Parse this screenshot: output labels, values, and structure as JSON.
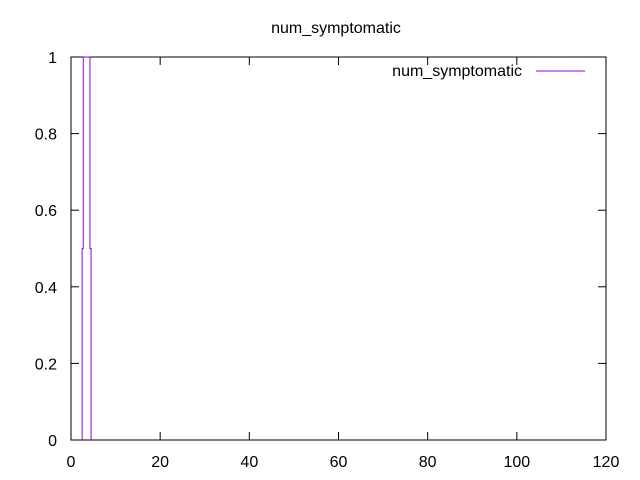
{
  "chart_data": {
    "type": "line",
    "title": "num_symptomatic",
    "xlabel": "",
    "ylabel": "",
    "xlim": [
      0,
      120
    ],
    "ylim": [
      0,
      1
    ],
    "x_ticks": [
      0,
      20,
      40,
      60,
      80,
      100,
      120
    ],
    "y_ticks": [
      0,
      0.2,
      0.4,
      0.6,
      0.8,
      1
    ],
    "x_tick_labels": [
      "0",
      "20",
      "40",
      "60",
      "80",
      "100",
      "120"
    ],
    "y_tick_labels": [
      "0",
      "0.2",
      "0.4",
      "0.6",
      "0.8",
      "1"
    ],
    "grid": false,
    "legend_position": "top-right",
    "series": [
      {
        "name": "num_symptomatic",
        "color": "#9400d3",
        "style": "histeps",
        "x": [
          2.5,
          2.5,
          3.0,
          4.0,
          4.5,
          4.5
        ],
        "y": [
          0,
          0.5,
          1,
          1,
          0.5,
          0
        ]
      }
    ]
  }
}
